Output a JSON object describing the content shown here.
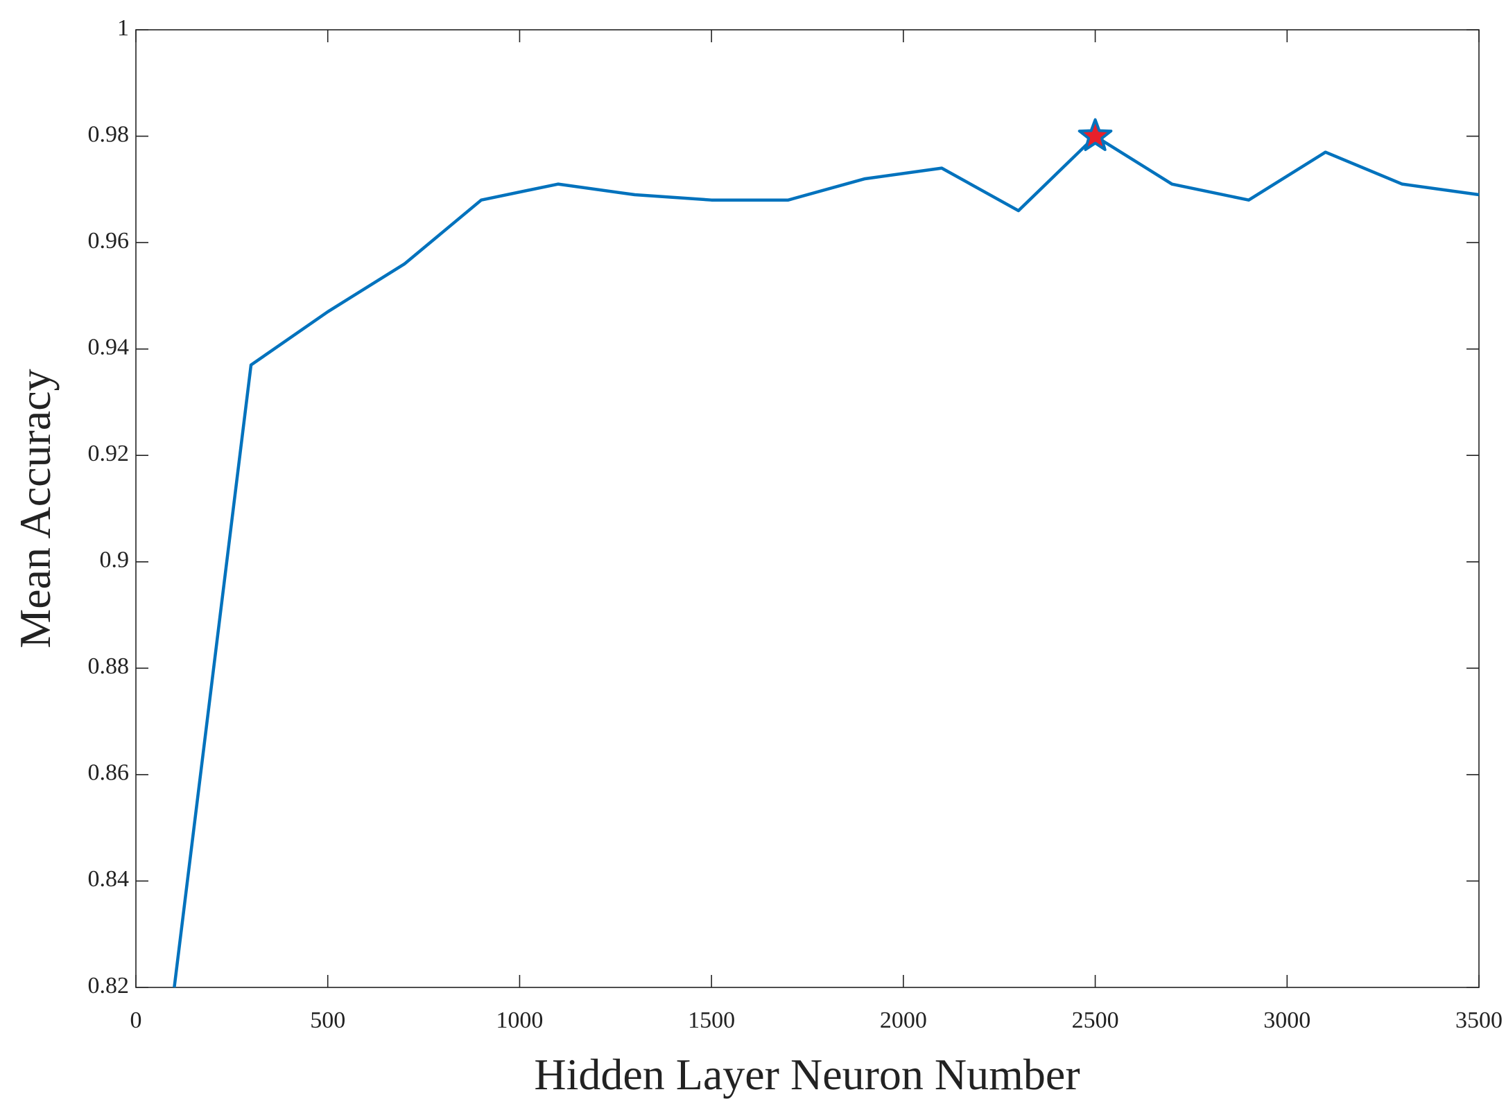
{
  "chart_data": {
    "type": "line",
    "xlabel": "Hidden Layer Neuron Number",
    "ylabel": "Mean Accuracy",
    "x": [
      100,
      300,
      500,
      700,
      900,
      1100,
      1300,
      1500,
      1700,
      1900,
      2100,
      2300,
      2500,
      2700,
      2900,
      3100,
      3300,
      3500
    ],
    "series": [
      {
        "color": "#0072bd",
        "values": [
          0.82,
          0.937,
          0.947,
          0.956,
          0.968,
          0.971,
          0.969,
          0.968,
          0.968,
          0.972,
          0.974,
          0.966,
          0.98,
          0.971,
          0.968,
          0.977,
          0.971,
          0.969
        ]
      }
    ],
    "highlight": {
      "x": 2500,
      "y": 0.98,
      "edge_color": "#0072bd",
      "fill_color": "#e8202a"
    },
    "xlim": [
      0,
      3500
    ],
    "ylim": [
      0.82,
      1
    ],
    "xticks": [
      0,
      500,
      1000,
      1500,
      2000,
      2500,
      3000,
      3500
    ],
    "yticks": [
      0.82,
      0.84,
      0.86,
      0.88,
      0.9,
      0.92,
      0.94,
      0.96,
      0.98,
      1
    ],
    "grid": false
  }
}
